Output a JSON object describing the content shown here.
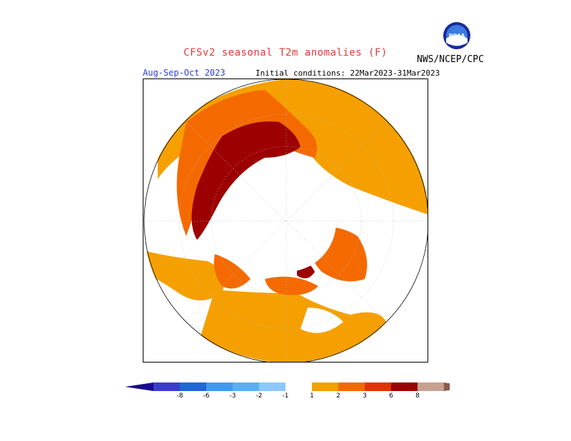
{
  "header": {
    "title": "CFSv2 seasonal T2m anomalies (F)",
    "org": "NWS/NCEP/CPC",
    "period": "Aug-Sep-Oct 2023",
    "initial_conditions": "Initial conditions: 22Mar2023-31Mar2023"
  },
  "logo": {
    "text": "NOAA",
    "icon": "noaa-logo-icon"
  },
  "map": {
    "projection": "polar-stereographic",
    "hemisphere": "north"
  },
  "colorbar": {
    "labels": [
      "-8",
      "-6",
      "-3",
      "-2",
      "-1",
      "1",
      "2",
      "3",
      "6",
      "8"
    ],
    "colors": [
      "#1a0b8c",
      "#3b3bd0",
      "#1f66d8",
      "#3e9af0",
      "#5ab0f5",
      "#8cc8ff",
      "#ffffff",
      "#f5a000",
      "#f56a00",
      "#e53000",
      "#9c0000",
      "#c8a090",
      "#8a5a4a"
    ]
  }
}
